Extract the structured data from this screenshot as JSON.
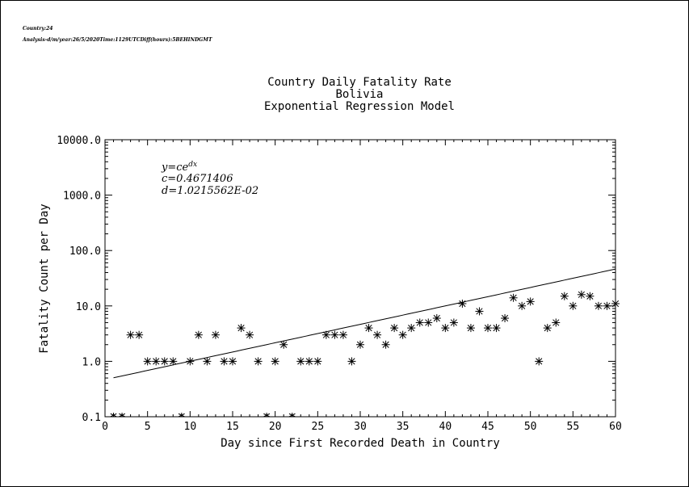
{
  "header": {
    "country_line": "Country:24",
    "analysis_line": "Analysis-d/m/year:26/5/2020Time:1129UTCDiff(hours):5BEHINDGMT"
  },
  "chart_data": {
    "type": "scatter",
    "title": [
      "Country Daily Fatality Rate",
      "Bolivia",
      "Exponential Regression Model"
    ],
    "xlabel": "Day since First Recorded Death in Country",
    "ylabel": "Fatality Count per Day",
    "xlim": [
      0,
      60
    ],
    "ylim": [
      0.1,
      10000
    ],
    "y_scale": "log",
    "x_ticks": [
      "0",
      "5",
      "10",
      "15",
      "20",
      "25",
      "30",
      "35",
      "40",
      "45",
      "50",
      "55",
      "60"
    ],
    "y_ticks": [
      "0.1",
      "1.0",
      "10.0",
      "100.0",
      "1000.0",
      "10000.0"
    ],
    "annotations": {
      "equation_lhs": "y=ce",
      "equation_exp": "dx",
      "c_line": "c=0.4671406",
      "d_line": "d=1.0215562E-02"
    },
    "fit": {
      "c": 0.4671406,
      "d": 0.010215562
    },
    "series": [
      {
        "marker": "asterisk",
        "x": [
          1,
          2,
          3,
          4,
          5,
          6,
          7,
          8,
          9,
          10,
          11,
          12,
          13,
          14,
          15,
          16,
          17,
          18,
          19,
          20,
          21,
          22,
          23,
          24,
          25,
          26,
          27,
          28,
          29,
          30,
          31,
          32,
          33,
          34,
          35,
          36,
          37,
          38,
          39,
          40,
          41,
          42,
          43,
          44,
          45,
          46,
          47,
          48,
          49,
          50,
          51,
          52,
          53,
          54,
          55,
          56,
          57,
          58,
          59,
          60
        ],
        "y": [
          0.1,
          0.1,
          3,
          3,
          1,
          1,
          1,
          1,
          0.1,
          1,
          3,
          1,
          3,
          1,
          1,
          4,
          3,
          1,
          0.1,
          1,
          2,
          0.1,
          1,
          1,
          1,
          3,
          3,
          3,
          1,
          2,
          4,
          3,
          2,
          4,
          3,
          4,
          5,
          5,
          6,
          4,
          5,
          11,
          4,
          8,
          4,
          4,
          6,
          14,
          10,
          12,
          1,
          4,
          5,
          15,
          10,
          16,
          15,
          10,
          10,
          11
        ]
      }
    ]
  }
}
